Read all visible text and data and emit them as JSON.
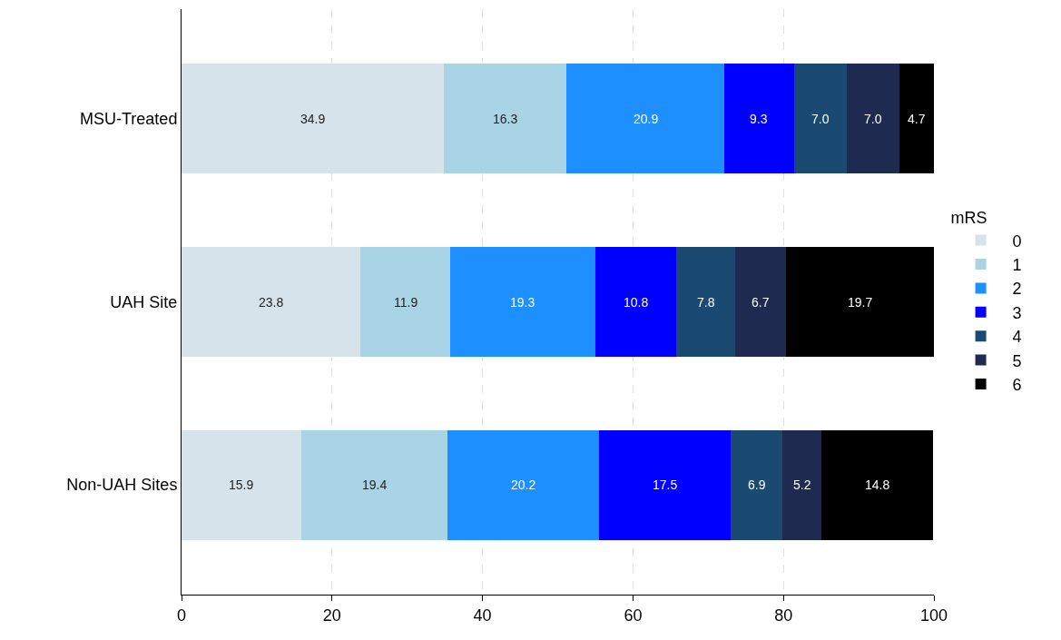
{
  "chart_data": {
    "type": "bar",
    "orientation": "horizontal",
    "stacked": true,
    "categories": [
      "MSU-Treated",
      "UAH Site",
      "Non-UAH Sites"
    ],
    "series": [
      {
        "name": "0",
        "color": "#d6e3ea",
        "values": [
          34.9,
          23.8,
          15.9
        ],
        "value_labels": [
          "34.9",
          "23.8",
          "15.9"
        ]
      },
      {
        "name": "1",
        "color": "#a8d4e6",
        "values": [
          16.3,
          11.9,
          19.4
        ],
        "value_labels": [
          "16.3",
          "11.9",
          "19.4"
        ]
      },
      {
        "name": "2",
        "color": "#1e8fff",
        "values": [
          20.9,
          19.3,
          20.2
        ],
        "value_labels": [
          "20.9",
          "19.3",
          "20.2"
        ]
      },
      {
        "name": "3",
        "color": "#0000ff",
        "values": [
          9.3,
          10.8,
          17.5
        ],
        "value_labels": [
          "9.3",
          "10.8",
          "17.5"
        ]
      },
      {
        "name": "4",
        "color": "#1a4a72",
        "values": [
          7.0,
          7.8,
          6.9
        ],
        "value_labels": [
          "7.0",
          "7.8",
          "6.9"
        ]
      },
      {
        "name": "5",
        "color": "#1e2a50",
        "values": [
          7.0,
          6.7,
          5.2
        ],
        "value_labels": [
          "7.0",
          "6.7",
          "5.2"
        ]
      },
      {
        "name": "6",
        "color": "#000000",
        "values": [
          4.7,
          19.7,
          14.8
        ],
        "value_labels": [
          "4.7",
          "19.7",
          "14.8"
        ]
      }
    ],
    "xlim": [
      0,
      100
    ],
    "xticks": [
      0,
      20,
      40,
      60,
      80,
      100
    ],
    "grid": "x",
    "legend": "right",
    "legend_title": "mRS",
    "data_labels": true
  }
}
